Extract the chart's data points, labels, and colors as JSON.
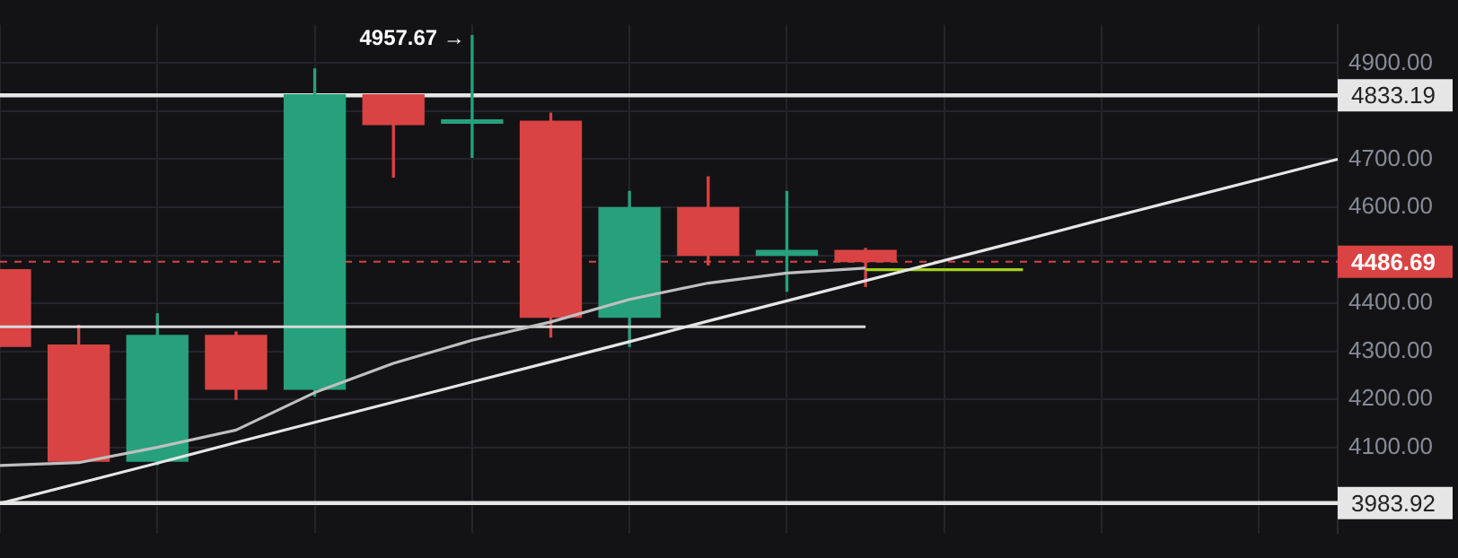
{
  "chart_data": {
    "type": "candlestick",
    "categories": [
      null,
      null,
      null,
      null,
      null,
      null,
      null,
      null,
      null,
      null,
      null,
      null,
      null,
      null,
      null,
      null,
      null,
      null
    ],
    "ohlc": [
      [
        4470,
        4470,
        4310,
        4310
      ],
      [
        4313,
        4354,
        4068,
        4071
      ],
      [
        4071,
        4378,
        4064,
        4333
      ],
      [
        4333,
        4340,
        4200,
        4221
      ],
      [
        4221,
        4888,
        4207,
        4834
      ],
      [
        4834,
        4834,
        4663,
        4772
      ],
      [
        4775,
        4957.67,
        4704,
        4782
      ],
      [
        4779,
        4796,
        4330,
        4371
      ],
      [
        4371,
        4633,
        4310,
        4599
      ],
      [
        4599,
        4663,
        4480,
        4500
      ],
      [
        4500,
        4633,
        4425,
        4510
      ],
      [
        4510,
        4514,
        4435,
        4486.69
      ],
      null,
      null,
      null,
      null,
      null,
      null
    ],
    "colors": [
      "#d94343",
      "#d94343",
      "#26a17b",
      "#d94343",
      "#26a17b",
      "#d94343",
      "#26a17b",
      "#d94343",
      "#26a17b",
      "#d94343",
      "#26a17b",
      "#d94343",
      null,
      null,
      null,
      null,
      null,
      null
    ],
    "series": [
      {
        "type": "line",
        "color": "#bfbfbf",
        "values": [
          4062,
          4068,
          4100,
          4136,
          4214,
          4275,
          4323,
          4361,
          4408,
          4442,
          4463,
          4473,
          null,
          null,
          null,
          null,
          null,
          null
        ]
      },
      {
        "type": "line",
        "color": "#e6e6e6",
        "values": [
          3983,
          4025,
          4067,
          4110,
          4152,
          4194,
          4236,
          4278,
          4320,
          4363,
          4405,
          4447,
          4489,
          4531,
          4574,
          4616,
          4658,
          4700
        ]
      },
      {
        "type": "line",
        "color": "#d9d9d9",
        "values": [
          4351,
          4351,
          4351,
          4351,
          4351,
          4351,
          4351,
          4351,
          4351,
          4351,
          4351,
          4351,
          null,
          null,
          null,
          null,
          null,
          null
        ]
      },
      {
        "type": "line",
        "color": "#a5d11c",
        "values": [
          null,
          null,
          null,
          null,
          null,
          null,
          null,
          null,
          null,
          null,
          null,
          4470,
          4470,
          4470,
          null,
          null,
          null,
          null
        ]
      }
    ],
    "ref_lines": [
      {
        "axis": "y",
        "value": 4833.19,
        "label": "4833.19",
        "color": "#e6e6e6"
      },
      {
        "axis": "y",
        "value": 3983.92,
        "label": "3983.92",
        "color": "#e6e6e6"
      },
      {
        "axis": "y",
        "value": 4486.69,
        "label": "4486.69",
        "color": "#d94343",
        "line_style": "dashed"
      }
    ],
    "annotations": [
      "4957.67 →"
    ],
    "ylim": [
      3921,
      4980
    ],
    "yticks": [
      {
        "value": 4100,
        "label": "4100.00"
      },
      {
        "value": 4200,
        "label": "4200.00"
      },
      {
        "value": 4300,
        "label": "4300.00"
      },
      {
        "value": 4400,
        "label": "4400.00"
      },
      {
        "value": 4500,
        "label": null
      },
      {
        "value": 4600,
        "label": "4600.00"
      },
      {
        "value": 4700,
        "label": "4700.00"
      },
      {
        "value": 4800,
        "label": null
      },
      {
        "value": 4900,
        "label": "4900.00"
      }
    ],
    "tick_labels": "y",
    "grid": true,
    "legend": false
  }
}
